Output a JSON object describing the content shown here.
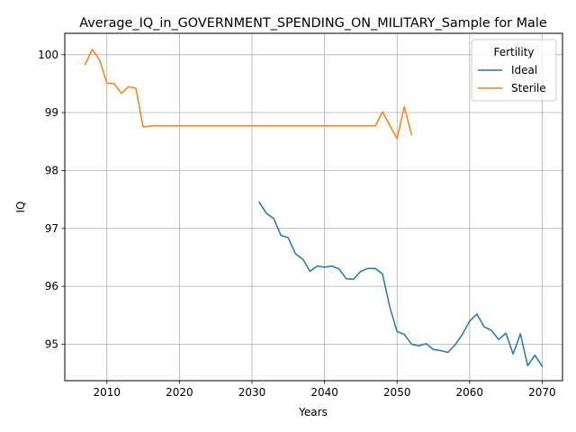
{
  "chart_data": {
    "type": "line",
    "title": "Average_IQ_in_GOVERNMENT_SPENDING_ON_MILITARY_Sample for Male",
    "xlabel": "Years",
    "ylabel": "IQ",
    "xlim": [
      2004.2,
      2072.8
    ],
    "ylim": [
      94.37,
      100.37
    ],
    "grid": true,
    "x_ticks": [
      2010,
      2020,
      2030,
      2040,
      2050,
      2060,
      2070
    ],
    "y_ticks": [
      95,
      96,
      97,
      98,
      99,
      100
    ],
    "legend": {
      "title": "Fertility",
      "placement": "upper right"
    },
    "series": [
      {
        "name": "Ideal",
        "color": "#1f77b4",
        "x": [
          2031,
          2032,
          2033,
          2034,
          2035,
          2036,
          2037,
          2038,
          2039,
          2040,
          2041,
          2042,
          2043,
          2044,
          2045,
          2046,
          2047,
          2048,
          2049,
          2050,
          2051,
          2052,
          2053,
          2054,
          2055,
          2056,
          2057,
          2058,
          2059,
          2060,
          2061,
          2062,
          2063,
          2064,
          2065,
          2066,
          2067,
          2068,
          2069,
          2070
        ],
        "y": [
          97.45,
          97.26,
          97.17,
          96.88,
          96.84,
          96.56,
          96.47,
          96.26,
          96.35,
          96.33,
          96.35,
          96.3,
          96.13,
          96.12,
          96.26,
          96.31,
          96.31,
          96.21,
          95.64,
          95.22,
          95.17,
          95.0,
          94.97,
          95.01,
          94.91,
          94.89,
          94.86,
          94.99,
          95.17,
          95.4,
          95.52,
          95.3,
          95.24,
          95.08,
          95.19,
          94.83,
          95.18,
          94.63,
          94.81,
          94.62
        ]
      },
      {
        "name": "Sterile",
        "color": "#ff7f0e",
        "x": [
          2007,
          2008,
          2009,
          2010,
          2011,
          2012,
          2013,
          2014,
          2015,
          2016,
          2017,
          2018,
          2019,
          2020,
          2021,
          2022,
          2023,
          2024,
          2025,
          2026,
          2027,
          2028,
          2029,
          2030,
          2031,
          2032,
          2033,
          2034,
          2035,
          2036,
          2037,
          2038,
          2039,
          2040,
          2041,
          2042,
          2043,
          2044,
          2045,
          2046,
          2047,
          2048,
          2049,
          2050,
          2051,
          2052
        ],
        "y": [
          99.83,
          100.09,
          99.91,
          99.51,
          99.5,
          99.33,
          99.45,
          99.42,
          98.75,
          98.77,
          98.77,
          98.77,
          98.77,
          98.77,
          98.77,
          98.77,
          98.77,
          98.77,
          98.77,
          98.77,
          98.77,
          98.77,
          98.77,
          98.77,
          98.77,
          98.77,
          98.77,
          98.77,
          98.77,
          98.77,
          98.77,
          98.77,
          98.77,
          98.77,
          98.77,
          98.77,
          98.77,
          98.77,
          98.77,
          98.77,
          98.77,
          99.01,
          98.78,
          98.55,
          99.1,
          98.62
        ]
      }
    ]
  }
}
